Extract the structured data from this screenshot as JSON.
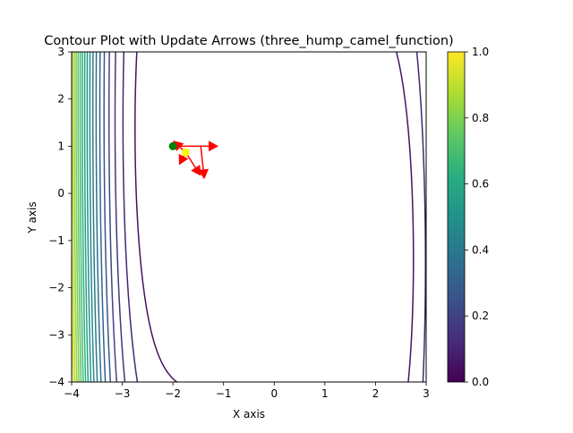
{
  "chart_data": {
    "type": "contour",
    "title": "Contour Plot with Update Arrows (three_hump_camel_function)",
    "xlabel": "X axis",
    "ylabel": "Y axis",
    "xlim": [
      -4,
      3
    ],
    "ylim": [
      -4,
      3
    ],
    "xticks": [
      -4,
      -3,
      -2,
      -1,
      0,
      1,
      2,
      3
    ],
    "yticks": [
      -4,
      -3,
      -2,
      -1,
      0,
      1,
      2,
      3
    ],
    "grid": false,
    "colormap": "viridis",
    "colorbar": {
      "range": [
        0,
        1
      ],
      "ticks": [
        0.0,
        0.2,
        0.4,
        0.6,
        0.8,
        1.0
      ]
    },
    "start_point": {
      "x": -2.0,
      "y": 1.0,
      "color": "#008000"
    },
    "end_point": {
      "x": -1.75,
      "y": 0.87,
      "color": "#ffff00"
    },
    "arrows": [
      {
        "from": [
          -1.75,
          0.87
        ],
        "to": [
          -2.0,
          1.12
        ]
      },
      {
        "from": [
          -1.75,
          0.87
        ],
        "to": [
          -1.88,
          0.6
        ]
      },
      {
        "from": [
          -2.0,
          1.0
        ],
        "to": [
          -1.1,
          1.0
        ]
      },
      {
        "from": [
          -1.45,
          1.0
        ],
        "to": [
          -1.38,
          0.3
        ]
      },
      {
        "from": [
          -1.75,
          0.87
        ],
        "to": [
          -1.45,
          0.37
        ]
      }
    ],
    "arrow_color": "#ff0000"
  }
}
